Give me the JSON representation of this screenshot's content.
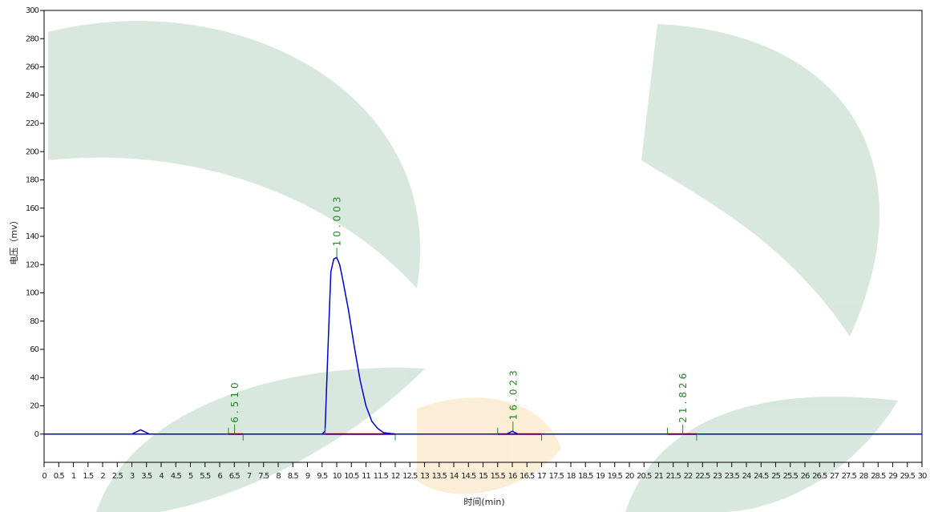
{
  "chart_data": {
    "type": "line",
    "x_label": "时间(min)",
    "y_label": "电压（mv）",
    "xlim": [
      0,
      30
    ],
    "ylim": [
      -20,
      300
    ],
    "xticks": [
      0,
      0.5,
      1,
      1.5,
      2,
      2.5,
      3,
      3.5,
      4,
      4.5,
      5,
      5.5,
      6,
      6.5,
      7,
      7.5,
      8,
      8.5,
      9,
      9.5,
      10,
      10.5,
      11,
      11.5,
      12,
      12.5,
      13,
      13.5,
      14,
      14.5,
      15,
      15.5,
      16,
      16.5,
      17,
      17.5,
      18,
      18.5,
      19,
      19.5,
      20,
      20.5,
      21,
      21.5,
      22,
      22.5,
      23,
      23.5,
      24,
      24.5,
      25,
      25.5,
      26,
      26.5,
      27,
      27.5,
      28,
      28.5,
      29,
      29.5,
      30
    ],
    "yticks": [
      0,
      20,
      40,
      60,
      80,
      100,
      120,
      140,
      160,
      180,
      200,
      220,
      240,
      260,
      280,
      300
    ],
    "series": [
      {
        "color": "#0000cc",
        "x": [
          0,
          3.0,
          3.2,
          3.3,
          3.4,
          3.6,
          9.5,
          9.6,
          9.7,
          9.8,
          9.9,
          10.0,
          10.1,
          10.2,
          10.4,
          10.6,
          10.8,
          11.0,
          11.2,
          11.4,
          11.6,
          12.0,
          15.8,
          16.0,
          16.2,
          30
        ],
        "values": [
          0,
          0,
          2,
          3,
          2,
          0,
          0,
          2,
          60,
          115,
          124,
          125,
          120,
          110,
          88,
          62,
          38,
          20,
          9,
          4,
          1,
          0,
          0,
          2,
          0,
          0
        ]
      }
    ],
    "peaks": [
      {
        "time": 6.51,
        "label": "6.510",
        "start": 6.3,
        "end": 6.8
      },
      {
        "time": 10.003,
        "label": "10.003",
        "start": 9.6,
        "end": 12.0
      },
      {
        "time": 16.023,
        "label": "16.023",
        "start": 15.5,
        "end": 17.0
      },
      {
        "time": 21.826,
        "label": "21.826",
        "start": 21.3,
        "end": 22.3
      }
    ],
    "baseline_color": "#dd0000",
    "annotation_color": "#228822"
  }
}
